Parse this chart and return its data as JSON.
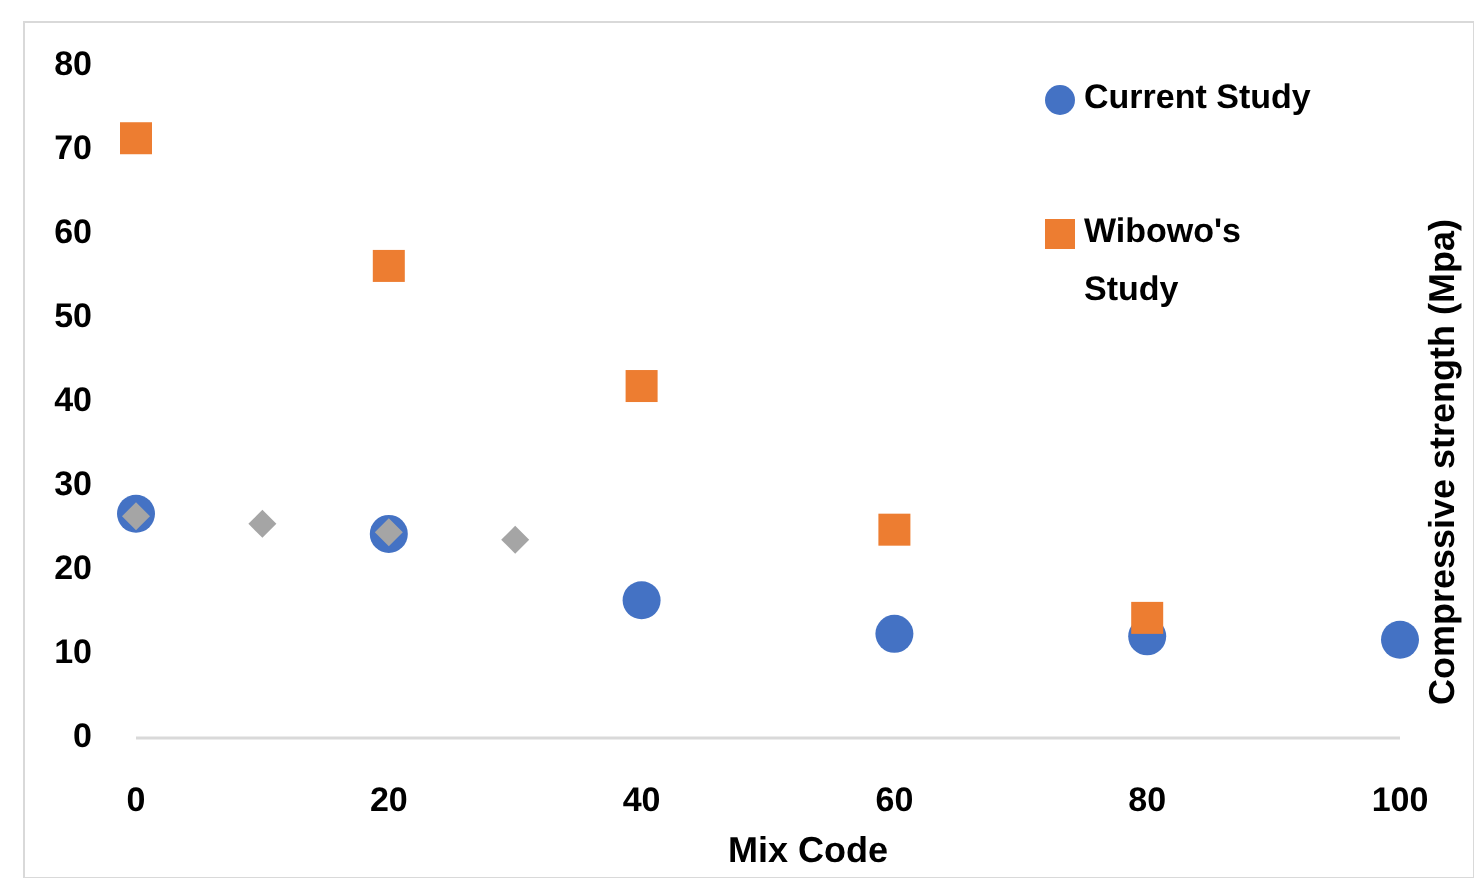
{
  "chart_data": {
    "type": "scatter",
    "xlabel": "Mix Code",
    "ylabel": "Compressive strength (Mpa)",
    "xlim": [
      0,
      100
    ],
    "xticks": [
      0,
      20,
      40,
      60,
      80,
      100
    ],
    "ylim": [
      0,
      80
    ],
    "yticks": [
      0,
      10,
      20,
      30,
      40,
      50,
      60,
      70,
      80
    ],
    "grid": false,
    "legend": "top right",
    "series": [
      {
        "name": "Current Study",
        "color": "#4472c4",
        "marker": "circle",
        "x": [
          0,
          20,
          40,
          60,
          80,
          100
        ],
        "values": [
          26.7,
          24.3,
          16.4,
          12.4,
          12.1,
          11.7
        ]
      },
      {
        "name": "Wibowo's Study",
        "color": "#ed7d31",
        "marker": "square",
        "x": [
          0,
          20,
          40,
          60,
          80
        ],
        "values": [
          71.4,
          56.2,
          41.9,
          24.8,
          14.3
        ]
      },
      {
        "color": "#a5a5a5",
        "marker": "diamond",
        "x": [
          0,
          10,
          20,
          30
        ],
        "values": [
          26.4,
          25.5,
          24.5,
          23.6
        ]
      }
    ]
  }
}
